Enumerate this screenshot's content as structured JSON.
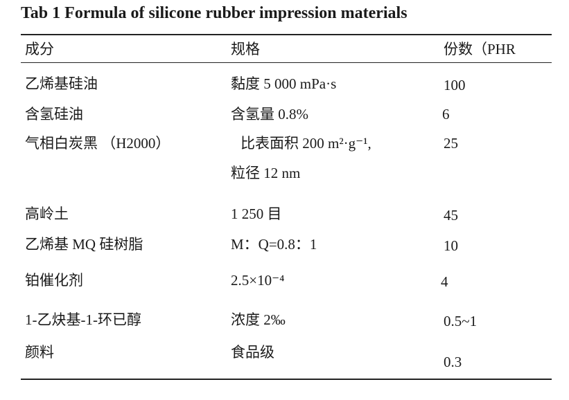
{
  "title": "Tab 1 Formula of silicone rubber impression materials",
  "table": {
    "header": [
      "成分",
      "规格",
      "份数（PHR"
    ],
    "rows": [
      [
        "乙烯基硅油",
        [
          "黏度 5 000 mPa·s"
        ],
        "100"
      ],
      [
        "含氢硅油",
        [
          "含氢量 0.8%"
        ],
        "6"
      ],
      [
        "气相白炭黑 （H2000）",
        [
          "比表面积 200 m²·g⁻¹,",
          "粒径 12 nm"
        ],
        "25"
      ],
      [
        "高岭土",
        [
          "1 250  目"
        ],
        "45"
      ],
      [
        "乙烯基 MQ  硅树脂",
        [
          "M：Q=0.8：1"
        ],
        "10"
      ],
      [
        "铂催化剂",
        [
          "2.5×10⁻⁴"
        ],
        "4"
      ],
      [
        "1-乙炔基-1-环已醇",
        [
          "浓度 2‰"
        ],
        "0.5~1"
      ],
      [
        "颜料",
        [
          "食品级"
        ],
        "0.3"
      ]
    ]
  }
}
